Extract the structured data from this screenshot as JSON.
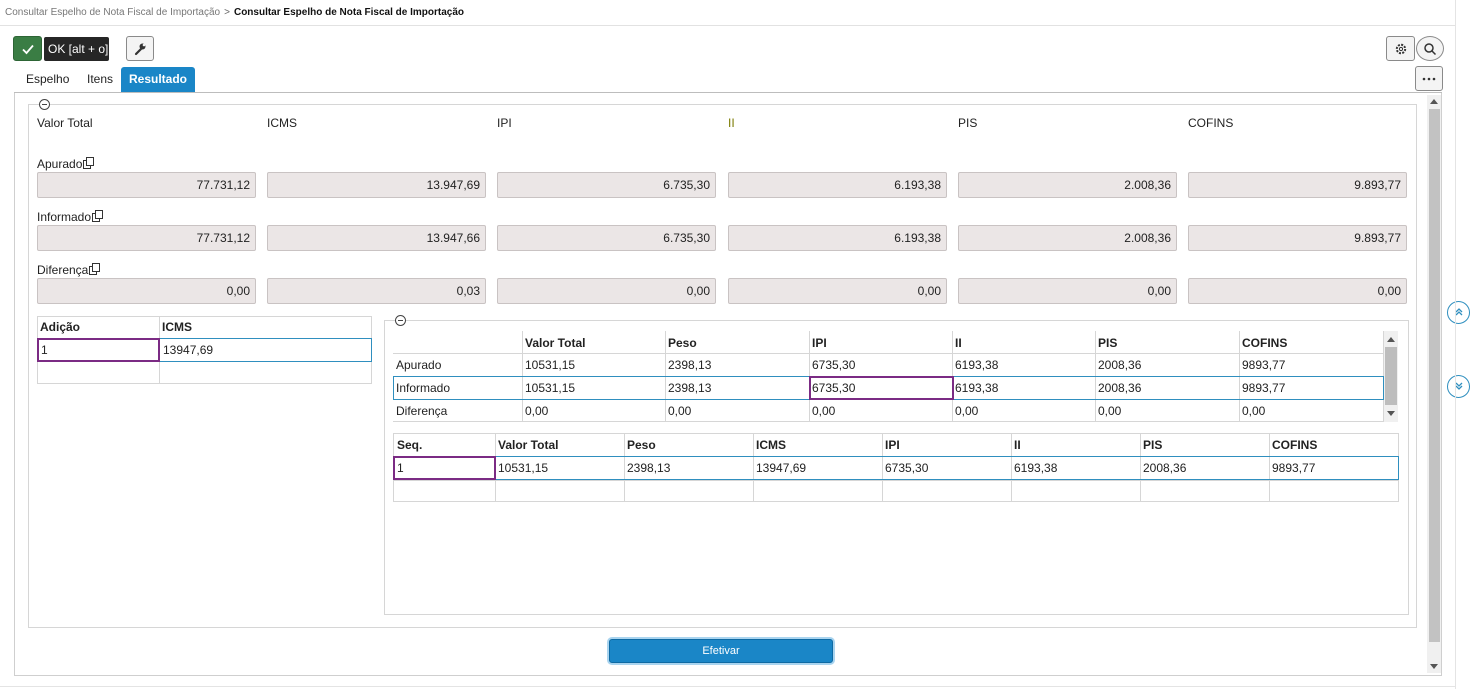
{
  "breadcrumb": {
    "parent": "Consultar Espelho de Nota Fiscal de Importação",
    "separator": ">",
    "current": "Consultar Espelho de Nota Fiscal de Importação"
  },
  "toolbar": {
    "ok_tooltip": "OK [alt + o]",
    "icons": {
      "ok": "check-icon",
      "tools": "wrench-icon",
      "settings": "gear-icon",
      "search": "search-icon",
      "more": "ellipsis-icon"
    }
  },
  "tabs": [
    {
      "label": "Espelho",
      "active": false
    },
    {
      "label": "Itens",
      "active": false
    },
    {
      "label": "Resultado",
      "active": true
    }
  ],
  "summary": {
    "columns": [
      "Valor Total",
      "ICMS",
      "IPI",
      "II",
      "PIS",
      "COFINS"
    ],
    "rows": [
      {
        "label": "Apurado",
        "values": [
          "77.731,12",
          "13.947,69",
          "6.735,30",
          "6.193,38",
          "2.008,36",
          "9.893,77"
        ]
      },
      {
        "label": "Informado",
        "values": [
          "77.731,12",
          "13.947,66",
          "6.735,30",
          "6.193,38",
          "2.008,36",
          "9.893,77"
        ]
      },
      {
        "label": "Diferença",
        "values": [
          "0,00",
          "0,03",
          "0,00",
          "0,00",
          "0,00",
          "0,00"
        ]
      }
    ]
  },
  "adicao_grid": {
    "headers": [
      "Adição",
      "ICMS"
    ],
    "rows": [
      [
        "1",
        "13947,69"
      ]
    ]
  },
  "comparison_grid": {
    "headers": [
      "",
      "Valor Total",
      "Peso",
      "IPI",
      "II",
      "PIS",
      "COFINS"
    ],
    "rows": [
      [
        "Apurado",
        "10531,15",
        "2398,13",
        "6735,30",
        "6193,38",
        "2008,36",
        "9893,77"
      ],
      [
        "Informado",
        "10531,15",
        "2398,13",
        "6735,30",
        "6193,38",
        "2008,36",
        "9893,77"
      ],
      [
        "Diferença",
        "0,00",
        "0,00",
        "0,00",
        "0,00",
        "0,00",
        "0,00"
      ]
    ]
  },
  "seq_grid": {
    "headers": [
      "Seq.",
      "Valor Total",
      "Peso",
      "ICMS",
      "IPI",
      "II",
      "PIS",
      "COFINS"
    ],
    "rows": [
      [
        "1",
        "10531,15",
        "2398,13",
        "13947,69",
        "6735,30",
        "6193,38",
        "2008,36",
        "9893,77"
      ]
    ]
  },
  "actions": {
    "efetivar": "Efetivar"
  },
  "colors": {
    "accent": "#1a86c7",
    "ok_button": "#3a7d44",
    "selected_cell": "#7b2b84",
    "field_bg": "#ebe6e6"
  }
}
